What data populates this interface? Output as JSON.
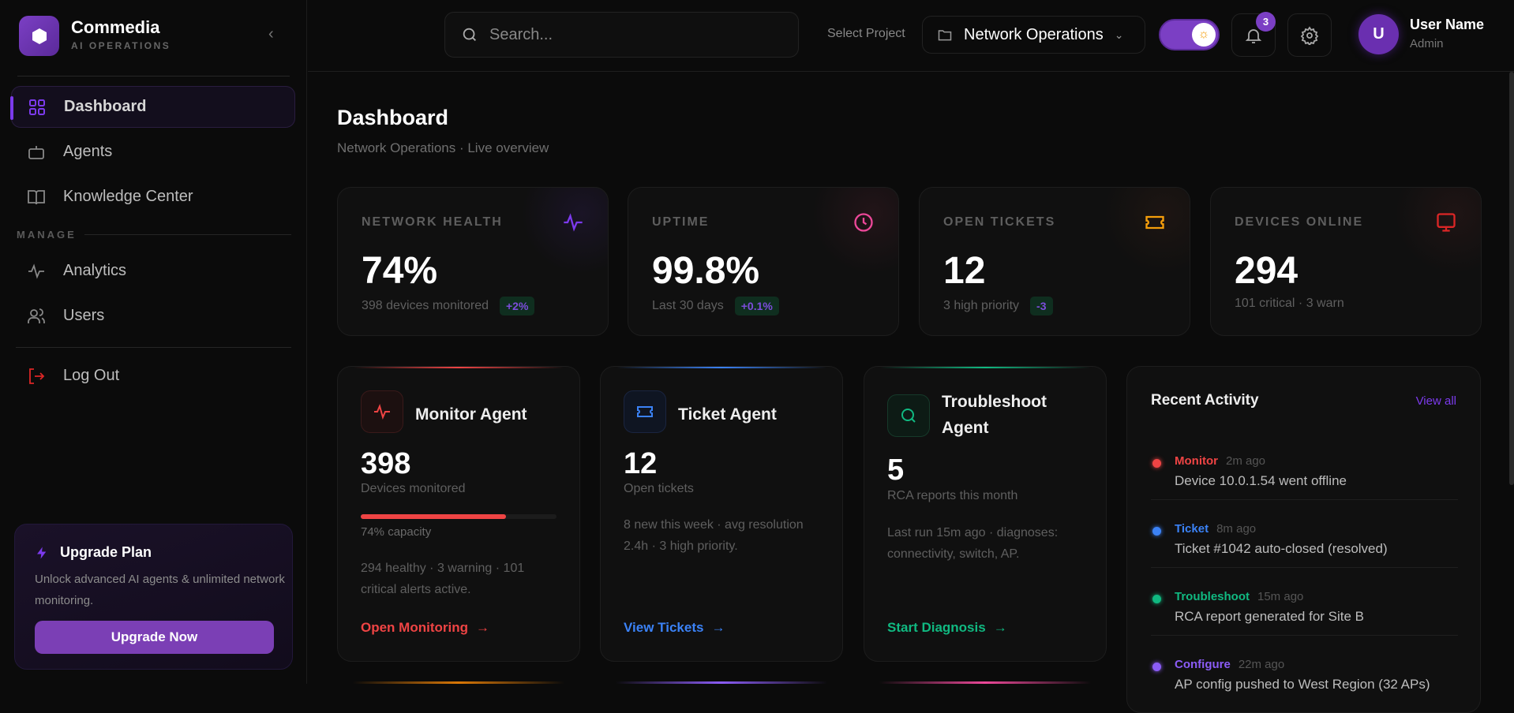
{
  "brand": {
    "name": "Commedia",
    "sub": "AI OPERATIONS"
  },
  "sidebar": {
    "items": [
      {
        "label": "Dashboard",
        "icon": "grid-icon"
      },
      {
        "label": "Agents",
        "icon": "bot-icon"
      },
      {
        "label": "Knowledge Center",
        "icon": "book-icon"
      }
    ],
    "section": "MANAGE",
    "manage": [
      {
        "label": "Analytics",
        "icon": "activity-icon"
      },
      {
        "label": "Users",
        "icon": "users-icon"
      }
    ],
    "logout": "Log Out",
    "upgrade": {
      "title": "Upgrade Plan",
      "desc": "Unlock advanced AI agents & unlimited network monitoring.",
      "button": "Upgrade Now"
    }
  },
  "header": {
    "search_placeholder": "Search...",
    "select_label": "Select Project",
    "project": "Network Operations",
    "notifications": "3",
    "user": {
      "initial": "U",
      "name": "User Name",
      "role": "Admin"
    }
  },
  "page": {
    "title": "Dashboard",
    "subtitle": "Network Operations · Live overview"
  },
  "stats": [
    {
      "label": "NETWORK HEALTH",
      "value": "74%",
      "sub": "398 devices monitored",
      "change": "+2%",
      "color": "#7c3aed"
    },
    {
      "label": "UPTIME",
      "value": "99.8%",
      "sub": "Last 30 days",
      "change": "+0.1%",
      "color": "#ec4899"
    },
    {
      "label": "OPEN TICKETS",
      "value": "12",
      "sub": "3 high priority",
      "change": "-3",
      "color": "#f59e0b"
    },
    {
      "label": "DEVICES ONLINE",
      "value": "294",
      "sub": "101 critical · 3 warn",
      "color": "#ef4444"
    }
  ],
  "agents": [
    {
      "title": "Monitor Agent",
      "value": "398",
      "value_label": "Devices monitored",
      "progress": 74,
      "progress_label": "74% capacity",
      "desc": "294 healthy · 3 warning · 101 critical alerts active.",
      "link": "Open Monitoring",
      "color": "#ef4444"
    },
    {
      "title": "Ticket Agent",
      "value": "12",
      "value_label": "Open tickets",
      "desc": "8 new this week · avg resolution 2.4h · 3 high priority.",
      "link": "View Tickets",
      "color": "#3b82f6"
    },
    {
      "title": "Troubleshoot Agent",
      "value": "5",
      "value_label": "RCA reports this month",
      "desc": "Last run 15m ago · diagnoses: connectivity, switch, AP.",
      "link": "Start Diagnosis",
      "color": "#10b981"
    }
  ],
  "activity": {
    "title": "Recent Activity",
    "view_all": "View all",
    "items": [
      {
        "tag": "Monitor",
        "time": "2m ago",
        "desc": "Device 10.0.1.54 went offline",
        "color": "#ef4444"
      },
      {
        "tag": "Ticket",
        "time": "8m ago",
        "desc": "Ticket #1042 auto-closed (resolved)",
        "color": "#3b82f6"
      },
      {
        "tag": "Troubleshoot",
        "time": "15m ago",
        "desc": "RCA report generated for Site B",
        "color": "#10b981"
      },
      {
        "tag": "Configure",
        "time": "22m ago",
        "desc": "AP config pushed to West Region (32 APs)",
        "color": "#8b5cf6"
      }
    ]
  }
}
